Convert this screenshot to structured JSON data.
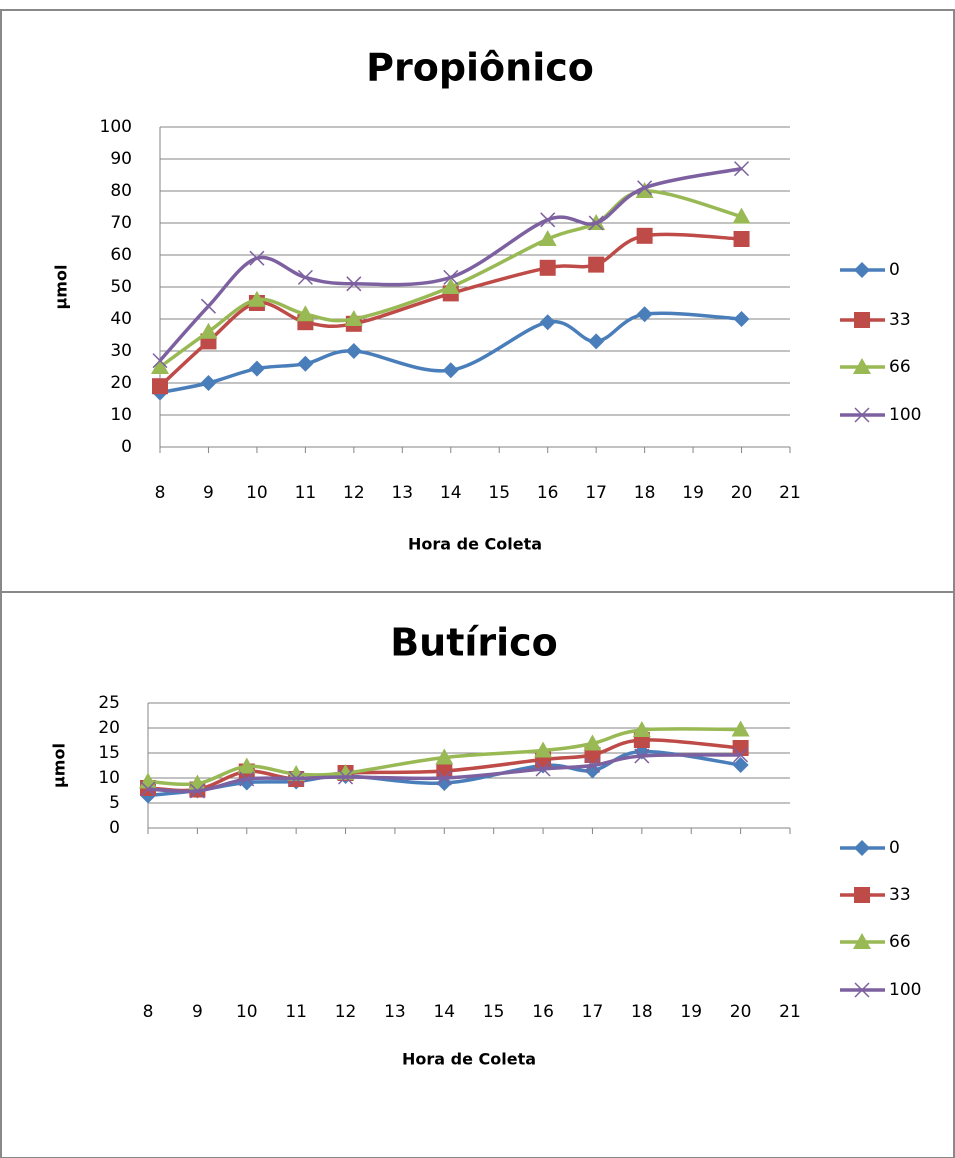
{
  "chart_data": [
    {
      "type": "line",
      "title": "Propiônico",
      "x_label": "Hora de Coleta",
      "y_label": "µmol",
      "x": [
        8,
        9,
        10,
        11,
        12,
        14,
        16,
        17,
        18,
        20
      ],
      "xlim": [
        8,
        21
      ],
      "xticks": [
        8,
        9,
        10,
        11,
        12,
        13,
        14,
        15,
        16,
        17,
        18,
        19,
        20,
        21
      ],
      "ylim": [
        0,
        100
      ],
      "yticks": [
        0,
        10,
        20,
        30,
        40,
        50,
        60,
        70,
        80,
        90,
        100
      ],
      "grid": true,
      "smooth": true,
      "legend": "right",
      "series": [
        {
          "name": "0",
          "color": "#4a7ebb",
          "marker": "diamond",
          "values": [
            17,
            20,
            24.5,
            26,
            30,
            24,
            39,
            33,
            41.5,
            40
          ]
        },
        {
          "name": "33",
          "color": "#be4b48",
          "marker": "square",
          "values": [
            19,
            33,
            45,
            39,
            38.5,
            48,
            56,
            57,
            66,
            65
          ]
        },
        {
          "name": "66",
          "color": "#98b954",
          "marker": "triangle",
          "values": [
            25,
            36,
            46,
            41.5,
            40,
            50,
            65,
            70,
            80,
            72
          ]
        },
        {
          "name": "100",
          "color": "#7d60a0",
          "marker": "x",
          "values": [
            27,
            44,
            59,
            53,
            51,
            53,
            71,
            70,
            81,
            87
          ]
        }
      ]
    },
    {
      "type": "line",
      "title": "Butírico",
      "x_label": "Hora de Coleta",
      "y_label": "µmol",
      "x": [
        8,
        9,
        10,
        11,
        12,
        14,
        16,
        17,
        18,
        20
      ],
      "xlim": [
        8,
        21
      ],
      "xticks": [
        8,
        9,
        10,
        11,
        12,
        13,
        14,
        15,
        16,
        17,
        18,
        19,
        20,
        21
      ],
      "ylim": [
        0,
        25
      ],
      "yticks": [
        0,
        5,
        10,
        15,
        20,
        25
      ],
      "grid": true,
      "smooth": true,
      "legend": "right",
      "series": [
        {
          "name": "0",
          "color": "#4a7ebb",
          "marker": "diamond",
          "values": [
            6.5,
            7.5,
            9.1,
            9.3,
            10.4,
            9,
            12.5,
            11.5,
            15.3,
            12.6
          ]
        },
        {
          "name": "33",
          "color": "#be4b48",
          "marker": "square",
          "values": [
            8,
            7.7,
            11.3,
            9.8,
            11,
            11.4,
            13.7,
            14.6,
            17.6,
            16
          ]
        },
        {
          "name": "66",
          "color": "#98b954",
          "marker": "triangle",
          "values": [
            9.3,
            8.9,
            12.3,
            10.8,
            11,
            14.1,
            15.5,
            16.9,
            19.6,
            19.7
          ]
        },
        {
          "name": "100",
          "color": "#7d60a0",
          "marker": "x",
          "values": [
            7.8,
            7.4,
            9.8,
            9.9,
            10.2,
            10,
            11.8,
            12.5,
            14.4,
            14.6
          ]
        }
      ]
    }
  ]
}
